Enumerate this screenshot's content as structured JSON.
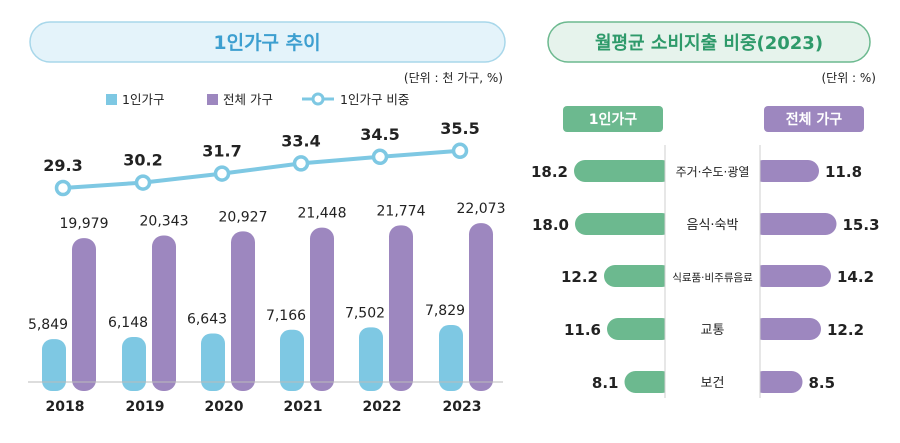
{
  "chart_data": [
    {
      "type": "bar",
      "title": "1인가구 추이",
      "unit_note": "(단위 : 천 가구, %)",
      "categories": [
        "2018",
        "2019",
        "2020",
        "2021",
        "2022",
        "2023"
      ],
      "series": [
        {
          "name": "1인가구",
          "kind": "bar",
          "color": "#7ec8e3",
          "values": [
            5849,
            6148,
            6643,
            7166,
            7502,
            7829
          ],
          "labels": [
            "5,849",
            "6,148",
            "6,643",
            "7,166",
            "7,502",
            "7,829"
          ]
        },
        {
          "name": "전체 가구",
          "kind": "bar",
          "color": "#9d87bf",
          "values": [
            19979,
            20343,
            20927,
            21448,
            21774,
            22073
          ],
          "labels": [
            "19,979",
            "20,343",
            "20,927",
            "21,448",
            "21,774",
            "22,073"
          ]
        },
        {
          "name": "1인가구 비중",
          "kind": "line",
          "color": "#7ec8e3",
          "values": [
            29.3,
            30.2,
            31.7,
            33.4,
            34.5,
            35.5
          ],
          "labels": [
            "29.3",
            "30.2",
            "31.7",
            "33.4",
            "34.5",
            "35.5"
          ]
        }
      ],
      "legend_position": "top-left",
      "grid": false
    },
    {
      "type": "bar",
      "title": "월평균 소비지출 비중(2023)",
      "unit_note": "(단위 : %)",
      "categories": [
        "주거·수도·광열",
        "음식·숙박",
        "식료품·비주류음료",
        "교통",
        "보건"
      ],
      "series": [
        {
          "name": "1인가구",
          "color": "#6cb98f",
          "values": [
            18.2,
            18.0,
            12.2,
            11.6,
            8.1
          ],
          "labels": [
            "18.2",
            "18.0",
            "12.2",
            "11.6",
            "8.1"
          ]
        },
        {
          "name": "전체 가구",
          "color": "#9d87bf",
          "values": [
            11.8,
            15.3,
            14.2,
            12.2,
            8.5
          ],
          "labels": [
            "11.8",
            "15.3",
            "14.2",
            "12.2",
            "8.5"
          ]
        }
      ],
      "orientation": "horizontal-butterfly"
    }
  ]
}
